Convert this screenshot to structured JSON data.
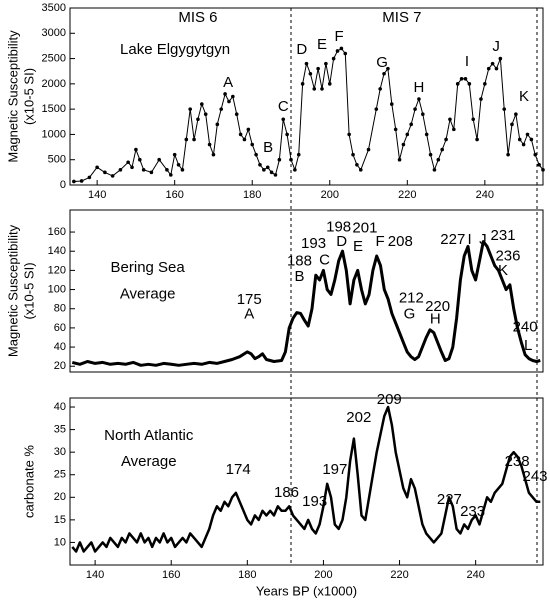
{
  "chart_data": [
    {
      "type": "line",
      "ylabel": [
        "Magnetic Susceptibility",
        "(x10-5 SI)"
      ],
      "color": "#000000",
      "markers": true,
      "xlim": [
        133,
        255
      ],
      "ylim": [
        0,
        3500
      ],
      "xticks": [
        140,
        160,
        180,
        200,
        220,
        240
      ],
      "yticks": [
        0,
        500,
        1000,
        1500,
        2000,
        2500,
        3000,
        3500
      ],
      "annotations": [
        {
          "text": "MIS 6",
          "x": 166.0,
          "y": 3302
        },
        {
          "text": "MIS 7",
          "x": 218.6,
          "y": 3302
        },
        {
          "text": "Lake Elgygytgyn",
          "x": 160.1,
          "y": 2669
        },
        {
          "text": "A",
          "x": 173.8,
          "y": 2017
        },
        {
          "text": "B",
          "x": 184.1,
          "y": 732
        },
        {
          "text": "C",
          "x": 188.0,
          "y": 1542
        },
        {
          "text": "D",
          "x": 192.8,
          "y": 2669
        },
        {
          "text": "E",
          "x": 198.0,
          "y": 2768
        },
        {
          "text": "F",
          "x": 202.4,
          "y": 2927
        },
        {
          "text": "G",
          "x": 213.5,
          "y": 2412
        },
        {
          "text": "H",
          "x": 223.0,
          "y": 1918
        },
        {
          "text": "I",
          "x": 235.4,
          "y": 2432
        },
        {
          "text": "J",
          "x": 242.9,
          "y": 2729
        },
        {
          "text": "K",
          "x": 250.1,
          "y": 1740
        }
      ],
      "x": [
        134,
        136,
        138,
        140,
        142,
        144,
        146,
        148,
        149,
        150,
        151,
        152,
        154,
        156,
        158,
        159,
        160,
        161,
        162,
        163,
        164,
        165,
        166,
        167,
        168,
        169,
        170,
        171,
        172,
        173,
        174,
        175,
        176,
        177,
        178,
        179,
        180,
        181,
        182,
        183,
        184,
        185,
        186,
        187,
        188,
        189,
        190,
        191,
        192,
        193,
        194,
        195,
        196,
        197,
        198,
        199,
        200,
        201,
        202,
        203,
        204,
        205,
        206,
        207,
        208,
        210,
        212,
        213,
        214,
        215,
        216,
        217,
        218,
        219,
        220,
        221,
        222,
        223,
        224,
        225,
        226,
        227,
        228,
        229,
        230,
        231,
        232,
        233,
        234,
        235,
        236,
        237,
        238,
        239,
        240,
        241,
        242,
        243,
        244,
        245,
        246,
        247,
        248,
        249,
        250,
        251,
        252,
        253,
        254,
        255
      ],
      "values": [
        70,
        80,
        150,
        350,
        250,
        180,
        300,
        450,
        350,
        700,
        500,
        300,
        250,
        500,
        300,
        200,
        600,
        400,
        300,
        900,
        1500,
        900,
        1300,
        1600,
        1400,
        800,
        600,
        1200,
        1500,
        1800,
        1650,
        1750,
        1400,
        1000,
        900,
        1100,
        800,
        600,
        400,
        300,
        350,
        250,
        200,
        500,
        1300,
        1000,
        500,
        300,
        600,
        2000,
        2400,
        2200,
        1900,
        2300,
        1900,
        2400,
        2000,
        2500,
        2650,
        2700,
        2600,
        1000,
        600,
        400,
        300,
        700,
        1500,
        1900,
        2200,
        2300,
        1600,
        1100,
        500,
        800,
        1000,
        1200,
        1500,
        1700,
        1400,
        1000,
        600,
        300,
        500,
        700,
        900,
        1300,
        1100,
        2000,
        2100,
        2100,
        2000,
        1300,
        900,
        1700,
        2000,
        2300,
        2400,
        2300,
        2500,
        1500,
        600,
        1200,
        1400,
        900,
        800,
        1000,
        900,
        600,
        400,
        300
      ]
    },
    {
      "type": "line",
      "ylabel": [
        "Magnetic Susceptibility",
        "(x10-5 SI)"
      ],
      "color": "#000000",
      "markers": false,
      "xlim": [
        133.4,
        257.7
      ],
      "ylim": [
        14,
        183
      ],
      "yticks": [
        20,
        40,
        60,
        80,
        100,
        120,
        140,
        160
      ],
      "annotations": [
        {
          "text": "Bering Sea",
          "x": 153.8,
          "y": 122.3
        },
        {
          "text": "Average",
          "x": 153.8,
          "y": 95.0
        },
        {
          "text": "175",
          "x": 180.5,
          "y": 88.9
        },
        {
          "text": "A",
          "x": 180.5,
          "y": 73.7
        },
        {
          "text": "188",
          "x": 193.7,
          "y": 129.4
        },
        {
          "text": "B",
          "x": 193.7,
          "y": 113.2
        },
        {
          "text": "193",
          "x": 197.4,
          "y": 147.6
        },
        {
          "text": "C",
          "x": 200.3,
          "y": 130.4
        },
        {
          "text": "198",
          "x": 204.0,
          "y": 164.8
        },
        {
          "text": "D",
          "x": 204.8,
          "y": 149.6
        },
        {
          "text": "E",
          "x": 209.1,
          "y": 144.5
        },
        {
          "text": "201",
          "x": 210.9,
          "y": 163.8
        },
        {
          "text": "F",
          "x": 214.9,
          "y": 149.6
        },
        {
          "text": "208",
          "x": 220.2,
          "y": 149.6
        },
        {
          "text": "212",
          "x": 223.1,
          "y": 90.9
        },
        {
          "text": "G",
          "x": 222.6,
          "y": 73.7
        },
        {
          "text": "220",
          "x": 230.0,
          "y": 81.8
        },
        {
          "text": "H",
          "x": 229.4,
          "y": 68.6
        },
        {
          "text": "227",
          "x": 234.0,
          "y": 151.6
        },
        {
          "text": "I",
          "x": 238.4,
          "y": 151.6
        },
        {
          "text": "J",
          "x": 241.9,
          "y": 151.6
        },
        {
          "text": "231",
          "x": 247.2,
          "y": 155.7
        },
        {
          "text": "236",
          "x": 248.5,
          "y": 134.4
        },
        {
          "text": "K",
          "x": 247.2,
          "y": 119.2
        },
        {
          "text": "240",
          "x": 253.0,
          "y": 60.6
        },
        {
          "text": "L",
          "x": 253.8,
          "y": 41.3
        }
      ],
      "x": [
        134,
        136,
        138,
        140,
        142,
        144,
        146,
        148,
        150,
        152,
        154,
        156,
        158,
        160,
        162,
        164,
        166,
        168,
        170,
        172,
        174,
        176,
        178,
        180,
        181,
        182,
        183,
        184,
        185,
        187,
        189,
        190,
        191,
        192,
        193,
        194,
        195,
        196,
        197,
        198,
        199,
        200,
        201,
        202,
        203,
        204,
        205,
        206,
        207,
        208,
        209,
        210,
        211,
        212,
        213,
        214,
        215,
        216,
        217,
        218,
        219,
        220,
        221,
        222,
        223,
        224,
        225,
        226,
        227,
        228,
        229,
        230,
        231,
        232,
        233,
        234,
        235,
        236,
        237,
        238,
        239,
        240,
        241,
        242,
        243,
        244,
        245,
        246,
        247,
        248,
        249,
        250,
        251,
        252,
        253,
        254,
        255,
        256,
        257
      ],
      "values": [
        24,
        22,
        25,
        23,
        24,
        22,
        23,
        22,
        24,
        21,
        22,
        21,
        23,
        22,
        21,
        22,
        23,
        22,
        24,
        23,
        25,
        27,
        30,
        35,
        33,
        28,
        30,
        33,
        27,
        25,
        26,
        35,
        60,
        70,
        76,
        75,
        68,
        62,
        80,
        115,
        110,
        120,
        100,
        95,
        110,
        130,
        140,
        120,
        85,
        110,
        120,
        100,
        85,
        95,
        120,
        135,
        125,
        100,
        90,
        75,
        65,
        55,
        45,
        35,
        30,
        27,
        30,
        40,
        50,
        58,
        55,
        45,
        35,
        26,
        28,
        40,
        70,
        110,
        135,
        145,
        120,
        110,
        130,
        150,
        145,
        135,
        125,
        120,
        110,
        100,
        105,
        80,
        60,
        45,
        32,
        28,
        26,
        25,
        26
      ]
    },
    {
      "type": "line",
      "ylabel": [
        "carbonate %"
      ],
      "xlabel": "Years BP (x1000)",
      "color": "#000000",
      "markers": false,
      "xlim": [
        133.4,
        257.7
      ],
      "ylim": [
        5,
        42
      ],
      "xticks": [
        140,
        160,
        180,
        200,
        220,
        240
      ],
      "yticks": [
        10,
        15,
        20,
        25,
        30,
        35,
        40
      ],
      "annotations": [
        {
          "text": "North Atlantic",
          "x": 154.1,
          "y": 33.6
        },
        {
          "text": "Average",
          "x": 154.1,
          "y": 27.8
        },
        {
          "text": "174",
          "x": 177.6,
          "y": 26.0
        },
        {
          "text": "186",
          "x": 190.3,
          "y": 21.0
        },
        {
          "text": "193",
          "x": 197.7,
          "y": 19.0
        },
        {
          "text": "197",
          "x": 203.0,
          "y": 26.0
        },
        {
          "text": "202",
          "x": 209.3,
          "y": 37.6
        },
        {
          "text": "209",
          "x": 217.3,
          "y": 41.6
        },
        {
          "text": "227",
          "x": 233.1,
          "y": 19.4
        },
        {
          "text": "233",
          "x": 239.2,
          "y": 16.7
        },
        {
          "text": "238",
          "x": 250.9,
          "y": 27.8
        },
        {
          "text": "243",
          "x": 255.6,
          "y": 24.5
        }
      ],
      "x": [
        134,
        135,
        136,
        137,
        138,
        139,
        140,
        141,
        142,
        143,
        144,
        145,
        146,
        147,
        148,
        149,
        150,
        151,
        152,
        153,
        154,
        155,
        156,
        157,
        158,
        159,
        160,
        161,
        162,
        163,
        164,
        165,
        166,
        167,
        168,
        169,
        170,
        171,
        172,
        173,
        174,
        175,
        176,
        177,
        178,
        179,
        180,
        181,
        182,
        183,
        184,
        185,
        186,
        187,
        188,
        189,
        190,
        191,
        192,
        193,
        194,
        195,
        196,
        197,
        198,
        199,
        200,
        201,
        202,
        203,
        204,
        205,
        206,
        207,
        208,
        209,
        210,
        211,
        212,
        213,
        214,
        215,
        216,
        217,
        218,
        219,
        220,
        221,
        222,
        223,
        224,
        225,
        226,
        227,
        228,
        229,
        230,
        231,
        232,
        233,
        234,
        235,
        236,
        237,
        238,
        239,
        240,
        241,
        242,
        243,
        244,
        245,
        246,
        247,
        248,
        249,
        250,
        251,
        252,
        253,
        254,
        255,
        256,
        257
      ],
      "values": [
        9,
        8,
        10,
        8,
        9,
        10,
        8,
        9,
        10,
        9,
        11,
        10,
        9,
        11,
        10,
        12,
        11,
        10,
        12,
        10,
        11,
        9,
        11,
        10,
        12,
        10,
        11,
        9,
        10,
        11,
        10,
        12,
        11,
        10,
        9,
        11,
        13,
        16,
        18,
        17,
        19,
        18,
        20,
        21,
        19,
        17,
        15,
        14,
        16,
        15,
        17,
        16,
        17,
        16,
        18,
        17,
        17,
        18,
        16,
        15,
        14,
        13,
        15,
        13,
        12,
        14,
        18,
        23,
        20,
        14,
        13,
        15,
        20,
        28,
        33,
        25,
        16,
        15,
        20,
        25,
        30,
        34,
        38,
        40,
        36,
        30,
        26,
        22,
        20,
        24,
        22,
        18,
        14,
        12,
        11,
        10,
        11,
        12,
        16,
        20,
        18,
        13,
        12,
        14,
        13,
        15,
        16,
        14,
        17,
        20,
        19,
        21,
        22,
        23,
        26,
        29,
        30,
        29,
        27,
        24,
        21,
        20,
        19,
        19
      ]
    }
  ]
}
